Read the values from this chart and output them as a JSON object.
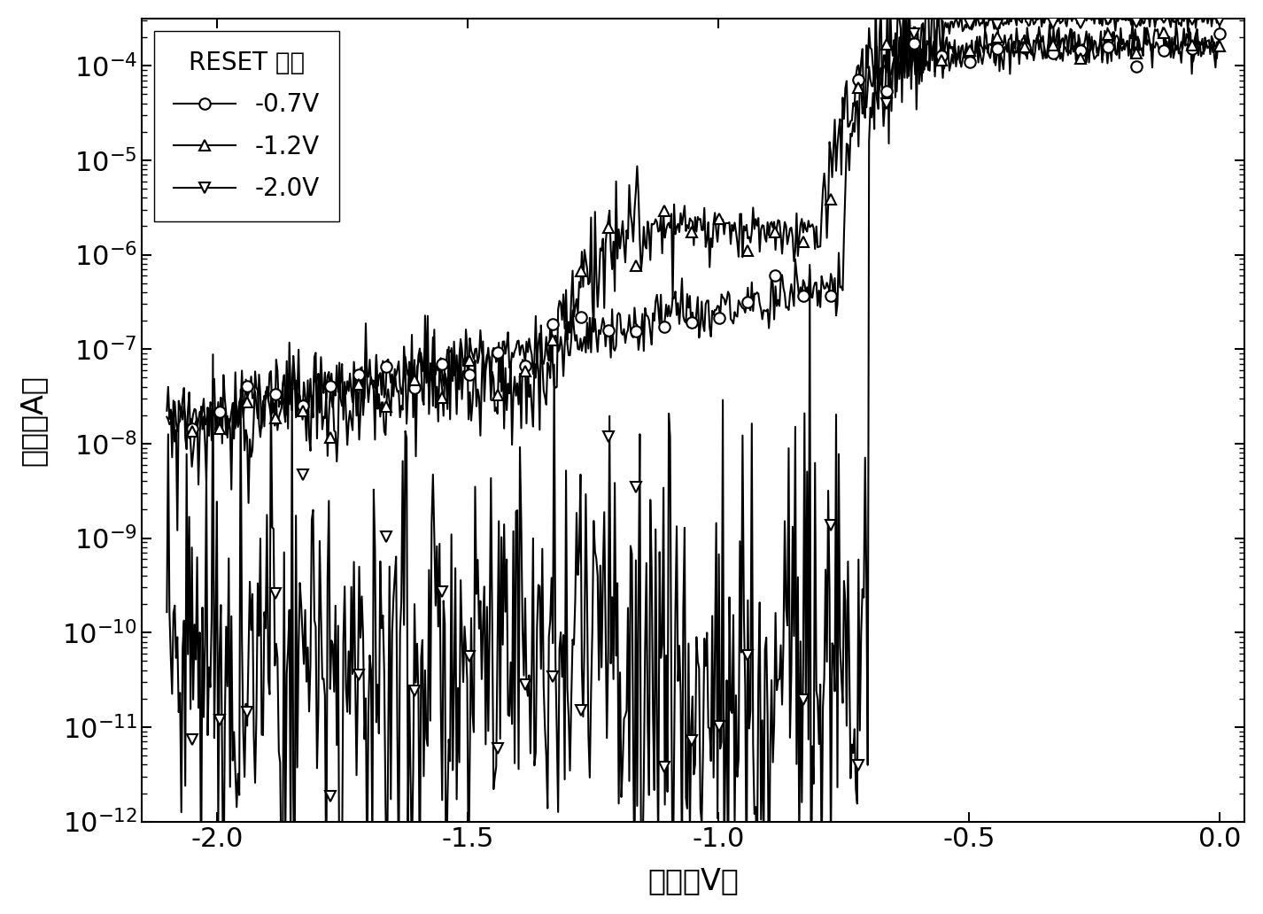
{
  "title": "",
  "xlabel": "电压（V）",
  "ylabel": "电流（A）",
  "xlim": [
    -2.15,
    0.05
  ],
  "ylim_log": [
    -12,
    -3.5
  ],
  "xticks": [
    -2.0,
    -1.5,
    -1.0,
    -0.5,
    0.0
  ],
  "legend_title": "RESET 电压",
  "legend_entries": [
    "-0.7V",
    "-1.2V",
    "-2.0V"
  ],
  "background_color": "#ffffff",
  "line_color": "#000000"
}
